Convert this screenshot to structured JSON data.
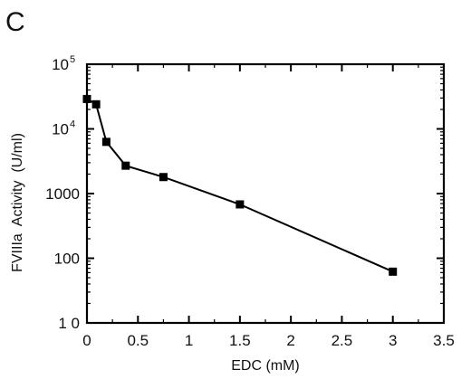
{
  "panel_label": "C",
  "chart_data": {
    "type": "line",
    "title": "",
    "xlabel": "EDC (mM)",
    "ylabel": "FVIIIa  Activity  (U/ml)",
    "x_scale": "linear",
    "y_scale": "log",
    "xlim": [
      0,
      3.5
    ],
    "ylim": [
      10,
      100000
    ],
    "x_ticks": [
      0,
      0.5,
      1,
      1.5,
      2,
      2.5,
      3,
      3.5
    ],
    "x_tick_labels": [
      "0",
      "0.5",
      "1",
      "1.5",
      "2",
      "2.5",
      "3",
      "3.5"
    ],
    "y_ticks": [
      10,
      100,
      1000,
      10000,
      100000
    ],
    "y_tick_labels": [
      {
        "base": "1 0",
        "exp": ""
      },
      {
        "base": "100",
        "exp": ""
      },
      {
        "base": "1000",
        "exp": ""
      },
      {
        "base": "10",
        "exp": "4"
      },
      {
        "base": "10",
        "exp": "5"
      }
    ],
    "grid": false,
    "marker": "square",
    "line_color": "#000000",
    "series": [
      {
        "x": [
          0,
          0.09,
          0.19,
          0.38,
          0.75,
          1.5,
          3.0
        ],
        "y": [
          29000,
          24000,
          6300,
          2700,
          1800,
          680,
          62
        ]
      }
    ]
  }
}
